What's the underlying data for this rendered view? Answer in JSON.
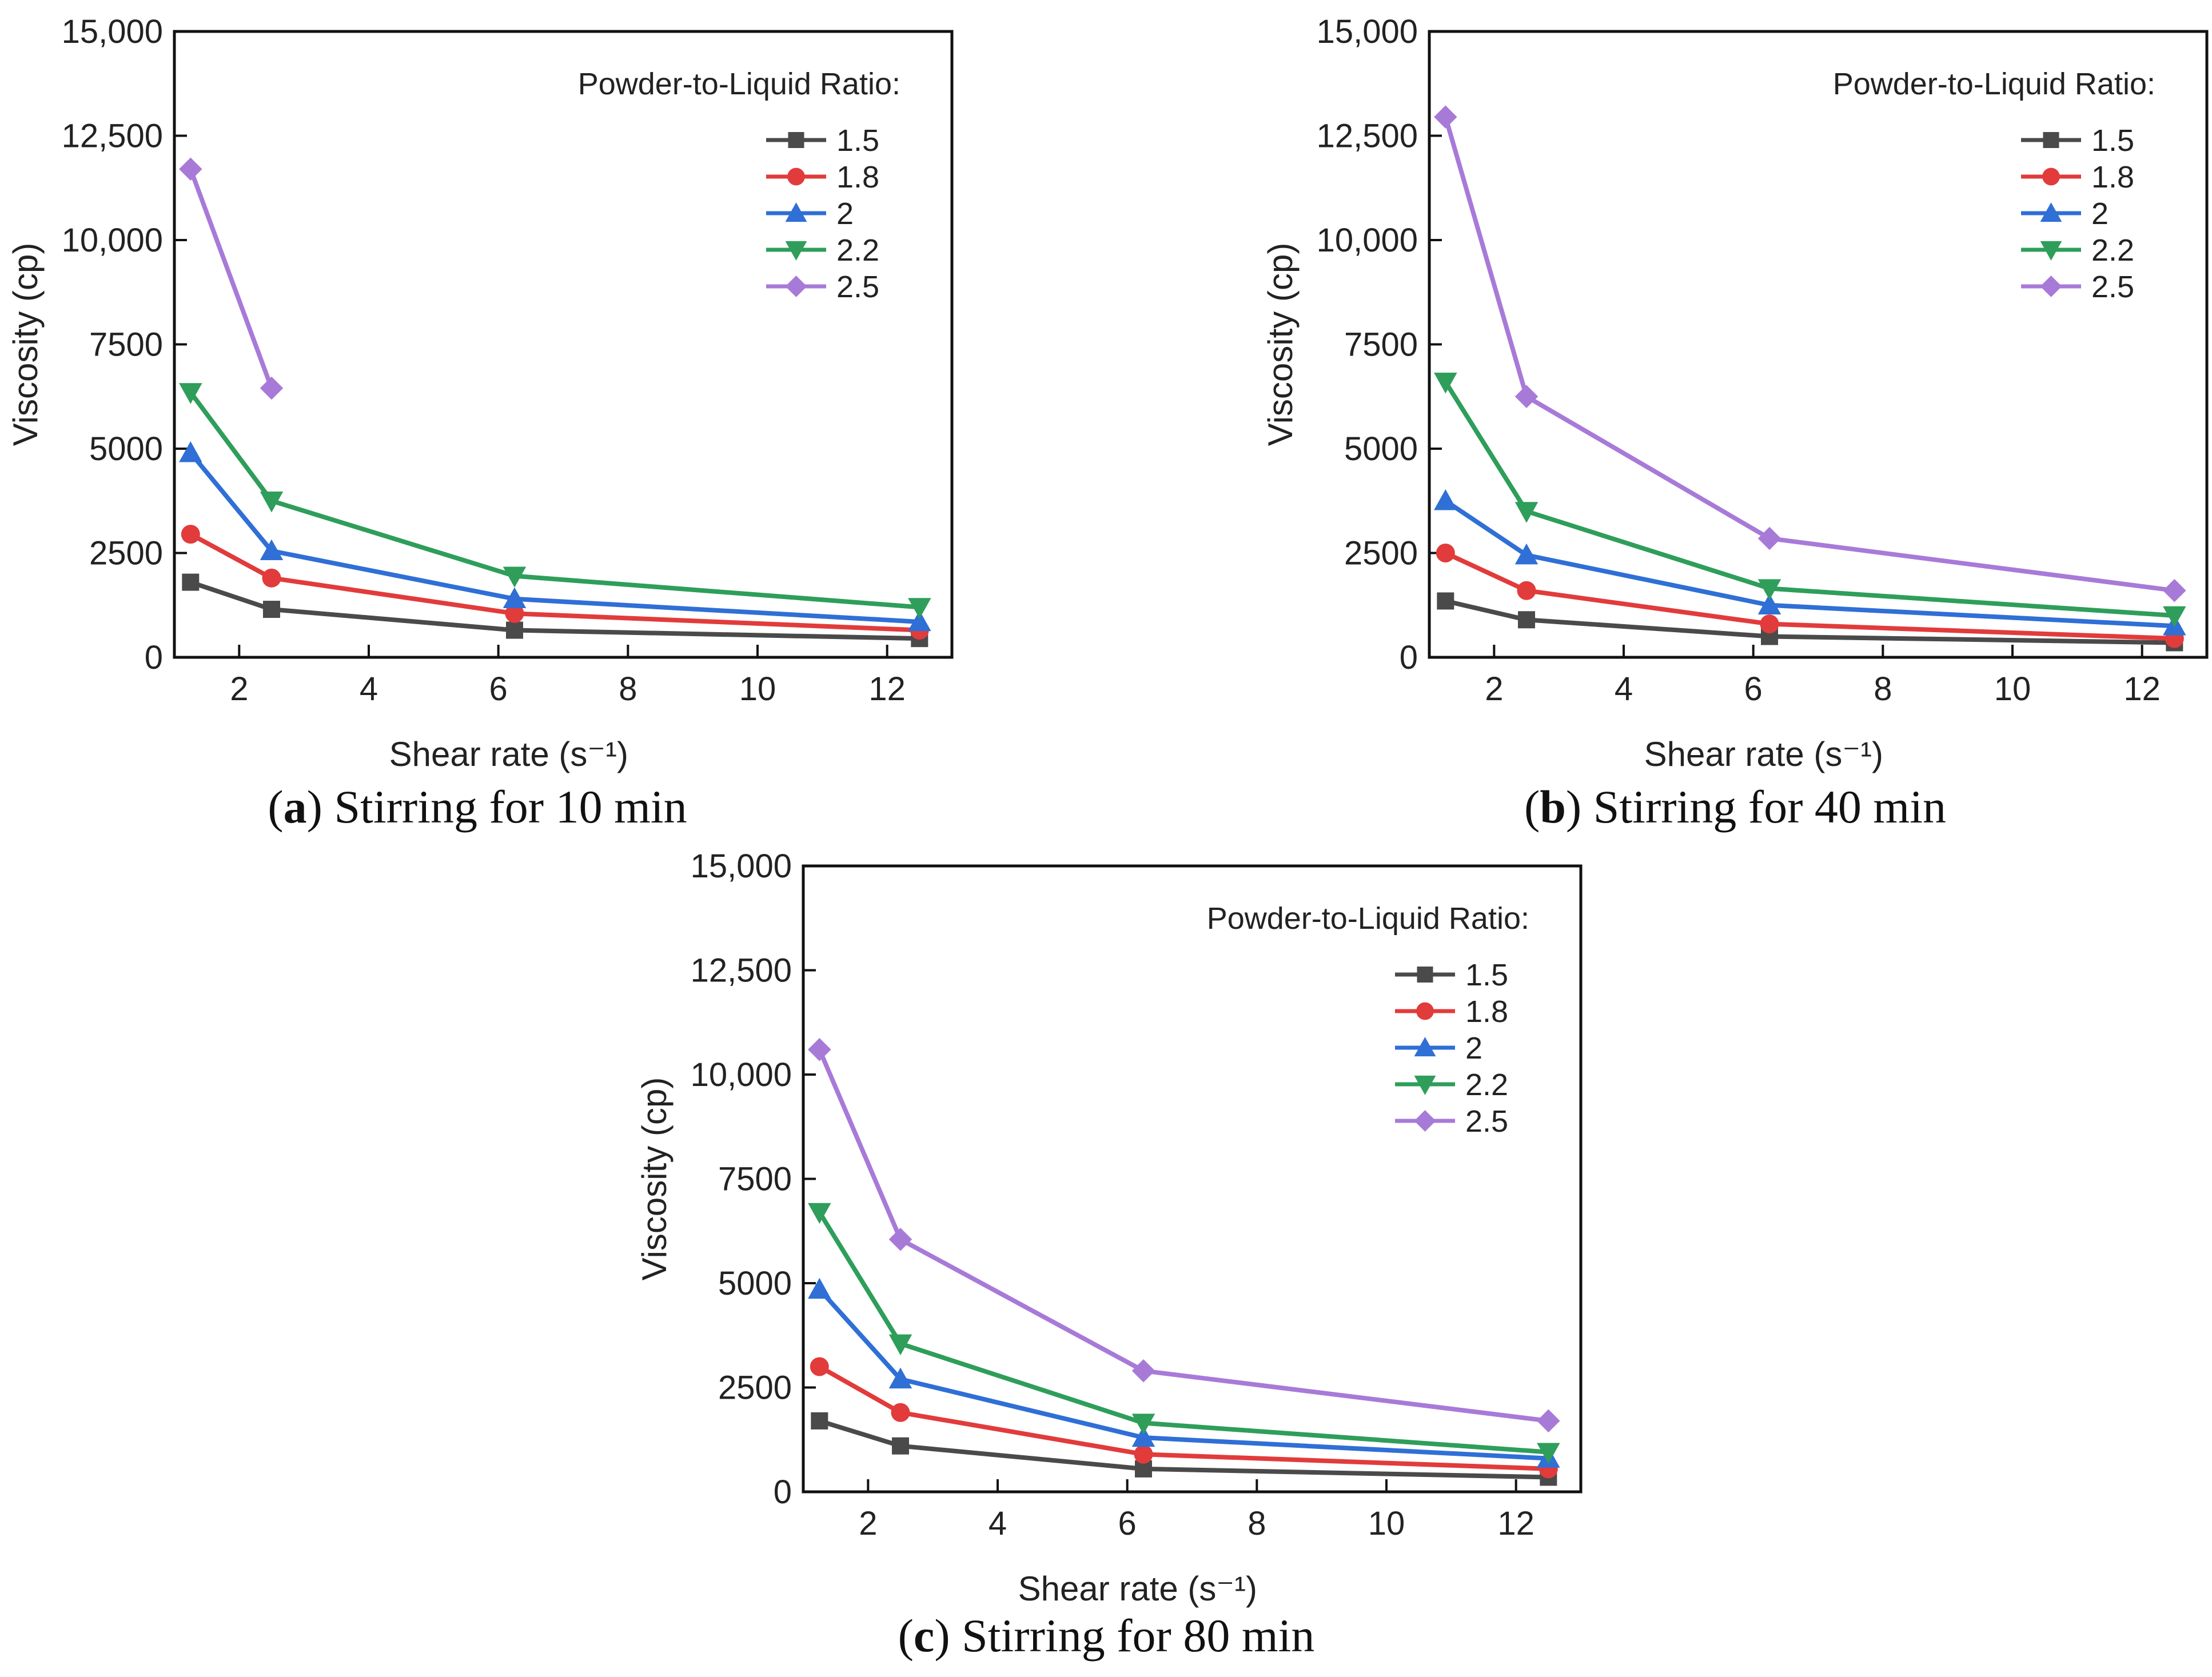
{
  "colors": {
    "1.5": "#4a4a4a",
    "1.8": "#e23b3b",
    "2": "#2f6fd6",
    "2.2": "#2e9e5a",
    "2.5": "#a87ad8"
  },
  "chart_data": [
    {
      "type": "line",
      "caption_letter": "a",
      "caption_text": "Stirring for 10 min",
      "xlabel": "Shear rate (s⁻¹)",
      "ylabel": "Viscosity (cp)",
      "xlim": [
        1,
        13
      ],
      "ylim": [
        0,
        15000
      ],
      "xticks": [
        2,
        4,
        6,
        8,
        10,
        12
      ],
      "yticks": [
        0,
        2500,
        5000,
        7500,
        10000,
        12500,
        15000
      ],
      "ytick_labels": [
        "0",
        "2500",
        "5000",
        "7500",
        "10,000",
        "12,500",
        "15,000"
      ],
      "legend_title": "Powder-to-Liquid Ratio:",
      "legend_position": "top-right",
      "series": [
        {
          "name": "1.5",
          "marker": "square",
          "x": [
            1.25,
            2.5,
            6.25,
            12.5
          ],
          "values": [
            1800,
            1150,
            650,
            450
          ]
        },
        {
          "name": "1.8",
          "marker": "circle",
          "x": [
            1.25,
            2.5,
            6.25,
            12.5
          ],
          "values": [
            2950,
            1900,
            1050,
            650
          ]
        },
        {
          "name": "2",
          "marker": "triangle-up",
          "x": [
            1.25,
            2.5,
            6.25,
            12.5
          ],
          "values": [
            4900,
            2550,
            1400,
            850
          ]
        },
        {
          "name": "2.2",
          "marker": "triangle-down",
          "x": [
            1.25,
            2.5,
            6.25,
            12.5
          ],
          "values": [
            6350,
            3750,
            1950,
            1200
          ]
        },
        {
          "name": "2.5",
          "marker": "diamond",
          "x": [
            1.25,
            2.5
          ],
          "values": [
            11700,
            6450
          ]
        }
      ]
    },
    {
      "type": "line",
      "caption_letter": "b",
      "caption_text": "Stirring for 40 min",
      "xlabel": "Shear rate (s⁻¹)",
      "ylabel": "Viscosity (cp)",
      "xlim": [
        1,
        13
      ],
      "ylim": [
        0,
        15000
      ],
      "xticks": [
        2,
        4,
        6,
        8,
        10,
        12
      ],
      "yticks": [
        0,
        2500,
        5000,
        7500,
        10000,
        12500,
        15000
      ],
      "ytick_labels": [
        "0",
        "2500",
        "5000",
        "7500",
        "10,000",
        "12,500",
        "15,000"
      ],
      "legend_title": "Powder-to-Liquid Ratio:",
      "legend_position": "top-right",
      "series": [
        {
          "name": "1.5",
          "marker": "square",
          "x": [
            1.25,
            2.5,
            6.25,
            12.5
          ],
          "values": [
            1350,
            900,
            500,
            350
          ]
        },
        {
          "name": "1.8",
          "marker": "circle",
          "x": [
            1.25,
            2.5,
            6.25,
            12.5
          ],
          "values": [
            2500,
            1600,
            800,
            450
          ]
        },
        {
          "name": "2",
          "marker": "triangle-up",
          "x": [
            1.25,
            2.5,
            6.25,
            12.5
          ],
          "values": [
            3750,
            2450,
            1250,
            750
          ]
        },
        {
          "name": "2.2",
          "marker": "triangle-down",
          "x": [
            1.25,
            2.5,
            6.25,
            12.5
          ],
          "values": [
            6600,
            3500,
            1650,
            1000
          ]
        },
        {
          "name": "2.5",
          "marker": "diamond",
          "x": [
            1.25,
            2.5,
            6.25,
            12.5
          ],
          "values": [
            12950,
            6250,
            2850,
            1600
          ]
        }
      ]
    },
    {
      "type": "line",
      "caption_letter": "c",
      "caption_text": "Stirring for 80 min",
      "xlabel": "Shear rate (s⁻¹)",
      "ylabel": "Viscosity (cp)",
      "xlim": [
        1,
        13
      ],
      "ylim": [
        0,
        15000
      ],
      "xticks": [
        2,
        4,
        6,
        8,
        10,
        12
      ],
      "yticks": [
        0,
        2500,
        5000,
        7500,
        10000,
        12500,
        15000
      ],
      "ytick_labels": [
        "0",
        "2500",
        "5000",
        "7500",
        "10,000",
        "12,500",
        "15,000"
      ],
      "legend_title": "Powder-to-Liquid Ratio:",
      "legend_position": "top-right",
      "series": [
        {
          "name": "1.5",
          "marker": "square",
          "x": [
            1.25,
            2.5,
            6.25,
            12.5
          ],
          "values": [
            1700,
            1100,
            550,
            350
          ]
        },
        {
          "name": "1.8",
          "marker": "circle",
          "x": [
            1.25,
            2.5,
            6.25,
            12.5
          ],
          "values": [
            3000,
            1900,
            900,
            550
          ]
        },
        {
          "name": "2",
          "marker": "triangle-up",
          "x": [
            1.25,
            2.5,
            6.25,
            12.5
          ],
          "values": [
            4850,
            2700,
            1300,
            800
          ]
        },
        {
          "name": "2.2",
          "marker": "triangle-down",
          "x": [
            1.25,
            2.5,
            6.25,
            12.5
          ],
          "values": [
            6700,
            3550,
            1650,
            950
          ]
        },
        {
          "name": "2.5",
          "marker": "diamond",
          "x": [
            1.25,
            2.5,
            6.25,
            12.5
          ],
          "values": [
            10600,
            6050,
            2900,
            1700
          ]
        }
      ]
    }
  ]
}
